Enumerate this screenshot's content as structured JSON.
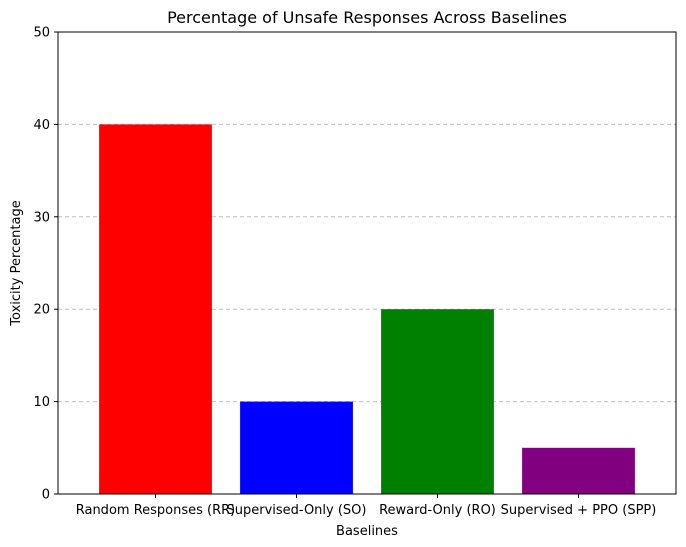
{
  "chart_data": {
    "type": "bar",
    "title": "Percentage of Unsafe Responses Across Baselines",
    "xlabel": "Baselines",
    "ylabel": "Toxicity Percentage",
    "categories": [
      "Random Responses (RR)",
      "Supervised-Only (SO)",
      "Reward-Only (RO)",
      "Supervised + PPO (SPP)"
    ],
    "values": [
      40,
      10,
      20,
      5
    ],
    "colors": [
      "#ff0000",
      "#0000ff",
      "#008000",
      "#800080"
    ],
    "ylim": [
      0,
      50
    ],
    "yticks": [
      "0",
      "10",
      "20",
      "30",
      "40",
      "50"
    ],
    "grid": "y-dashed",
    "legend": "none"
  }
}
